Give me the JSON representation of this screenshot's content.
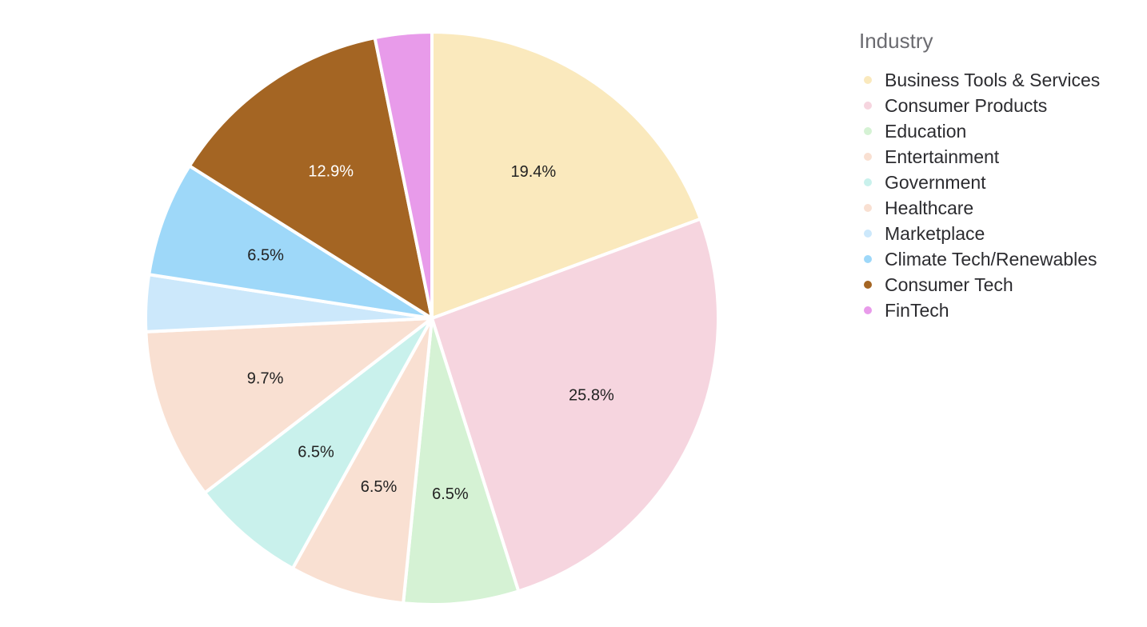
{
  "chart_data": {
    "type": "pie",
    "legend_title": "Industry",
    "legend_position": "right",
    "start_angle_deg": 0,
    "direction": "clockwise",
    "slices": [
      {
        "name": "Business Tools & Services",
        "value": 19.4,
        "label": "19.4%",
        "color": "#fae9bd",
        "label_color": "#222222"
      },
      {
        "name": "Consumer Products",
        "value": 25.8,
        "label": "25.8%",
        "color": "#f6d5df",
        "label_color": "#222222"
      },
      {
        "name": "Education",
        "value": 6.5,
        "label": "6.5%",
        "color": "#d5f2d4",
        "label_color": "#222222"
      },
      {
        "name": "Entertainment",
        "value": 6.5,
        "label": "6.5%",
        "color": "#f9e0d2",
        "label_color": "#222222"
      },
      {
        "name": "Government",
        "value": 6.5,
        "label": "6.5%",
        "color": "#c9f1ec",
        "label_color": "#222222"
      },
      {
        "name": "Healthcare",
        "value": 9.7,
        "label": "9.7%",
        "color": "#f9e0d2",
        "label_color": "#222222"
      },
      {
        "name": "Marketplace",
        "value": 3.2,
        "label": "",
        "color": "#cce8fb",
        "label_color": "#222222"
      },
      {
        "name": "Climate Tech/Renewables",
        "value": 6.5,
        "label": "6.5%",
        "color": "#9ed8f9",
        "label_color": "#222222"
      },
      {
        "name": "Consumer Tech",
        "value": 12.9,
        "label": "12.9%",
        "color": "#a46523",
        "label_color": "#ffffff"
      },
      {
        "name": "FinTech",
        "value": 3.2,
        "label": "",
        "color": "#e89bea",
        "label_color": "#222222"
      }
    ]
  }
}
